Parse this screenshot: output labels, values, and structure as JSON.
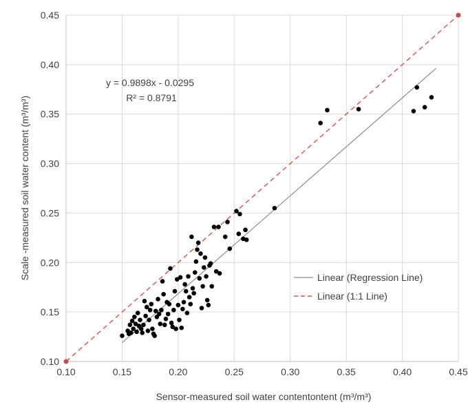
{
  "chart_data": {
    "type": "scatter",
    "title": "",
    "xlabel": "Sensor-measured  soil water contentontent (m³/m³)",
    "ylabel": "Scale -measured soil water content (m³/m³)",
    "xlim": [
      0.1,
      0.45
    ],
    "ylim": [
      0.1,
      0.45
    ],
    "xticks": [
      "0.10",
      "0.15",
      "0.20",
      "0.25",
      "0.30",
      "0.35",
      "0.40",
      "0.45"
    ],
    "yticks": [
      "0.10",
      "0.15",
      "0.20",
      "0.25",
      "0.30",
      "0.35",
      "0.40",
      "0.45"
    ],
    "grid": true,
    "legend_position": "bottom-right",
    "annotation": {
      "equation": "y = 0.9898x - 0.0295",
      "r2": "R² = 0.8791"
    },
    "series": [
      {
        "name": "",
        "type": "scatter",
        "color": "#000000",
        "points": [
          [
            0.15,
            0.126
          ],
          [
            0.155,
            0.131
          ],
          [
            0.156,
            0.128
          ],
          [
            0.157,
            0.137
          ],
          [
            0.158,
            0.129
          ],
          [
            0.159,
            0.141
          ],
          [
            0.16,
            0.133
          ],
          [
            0.161,
            0.145
          ],
          [
            0.162,
            0.138
          ],
          [
            0.163,
            0.13
          ],
          [
            0.164,
            0.149
          ],
          [
            0.165,
            0.136
          ],
          [
            0.166,
            0.142
          ],
          [
            0.167,
            0.133
          ],
          [
            0.168,
            0.129
          ],
          [
            0.169,
            0.137
          ],
          [
            0.17,
            0.161
          ],
          [
            0.171,
            0.146
          ],
          [
            0.172,
            0.155
          ],
          [
            0.173,
            0.131
          ],
          [
            0.174,
            0.142
          ],
          [
            0.175,
            0.152
          ],
          [
            0.176,
            0.158
          ],
          [
            0.177,
            0.133
          ],
          [
            0.178,
            0.128
          ],
          [
            0.179,
            0.126
          ],
          [
            0.18,
            0.151
          ],
          [
            0.181,
            0.145
          ],
          [
            0.182,
            0.163
          ],
          [
            0.183,
            0.148
          ],
          [
            0.184,
            0.138
          ],
          [
            0.185,
            0.152
          ],
          [
            0.186,
            0.181
          ],
          [
            0.187,
            0.168
          ],
          [
            0.188,
            0.137
          ],
          [
            0.189,
            0.143
          ],
          [
            0.19,
            0.16
          ],
          [
            0.191,
            0.148
          ],
          [
            0.192,
            0.158
          ],
          [
            0.193,
            0.194
          ],
          [
            0.194,
            0.139
          ],
          [
            0.195,
            0.135
          ],
          [
            0.196,
            0.152
          ],
          [
            0.197,
            0.171
          ],
          [
            0.198,
            0.133
          ],
          [
            0.199,
            0.183
          ],
          [
            0.2,
            0.157
          ],
          [
            0.201,
            0.142
          ],
          [
            0.202,
            0.185
          ],
          [
            0.203,
            0.134
          ],
          [
            0.204,
            0.153
          ],
          [
            0.205,
            0.16
          ],
          [
            0.206,
            0.178
          ],
          [
            0.207,
            0.171
          ],
          [
            0.208,
            0.149
          ],
          [
            0.209,
            0.186
          ],
          [
            0.21,
            0.165
          ],
          [
            0.211,
            0.158
          ],
          [
            0.212,
            0.226
          ],
          [
            0.213,
            0.174
          ],
          [
            0.214,
            0.169
          ],
          [
            0.215,
            0.19
          ],
          [
            0.216,
            0.201
          ],
          [
            0.217,
            0.213
          ],
          [
            0.218,
            0.22
          ],
          [
            0.219,
            0.184
          ],
          [
            0.22,
            0.209
          ],
          [
            0.221,
            0.154
          ],
          [
            0.222,
            0.176
          ],
          [
            0.223,
            0.195
          ],
          [
            0.224,
            0.205
          ],
          [
            0.225,
            0.186
          ],
          [
            0.226,
            0.162
          ],
          [
            0.227,
            0.157
          ],
          [
            0.228,
            0.197
          ],
          [
            0.229,
            0.199
          ],
          [
            0.23,
            0.176
          ],
          [
            0.232,
            0.236
          ],
          [
            0.234,
            0.191
          ],
          [
            0.236,
            0.236
          ],
          [
            0.237,
            0.189
          ],
          [
            0.242,
            0.226
          ],
          [
            0.244,
            0.241
          ],
          [
            0.246,
            0.214
          ],
          [
            0.252,
            0.252
          ],
          [
            0.254,
            0.229
          ],
          [
            0.255,
            0.249
          ],
          [
            0.258,
            0.224
          ],
          [
            0.26,
            0.233
          ],
          [
            0.261,
            0.223
          ],
          [
            0.286,
            0.255
          ],
          [
            0.327,
            0.341
          ],
          [
            0.333,
            0.354
          ],
          [
            0.361,
            0.355
          ],
          [
            0.41,
            0.353
          ],
          [
            0.413,
            0.377
          ],
          [
            0.42,
            0.357
          ],
          [
            0.426,
            0.367
          ]
        ]
      },
      {
        "name": "Linear (Regression Line)",
        "type": "line",
        "color": "#8c8c8c",
        "dash": "solid",
        "x": [
          0.15,
          0.326
        ],
        "y": [
          0.119,
          0.2932
        ],
        "x2": [
          0.326,
          0.43
        ],
        "y2": [
          0.2932,
          0.3961
        ]
      },
      {
        "name": "Linear (1:1 Line)",
        "type": "line",
        "color": "#d9534f",
        "dash": "dashed",
        "x": [
          0.1,
          0.45
        ],
        "y": [
          0.1,
          0.45
        ],
        "endpoint_markers": true
      }
    ]
  }
}
